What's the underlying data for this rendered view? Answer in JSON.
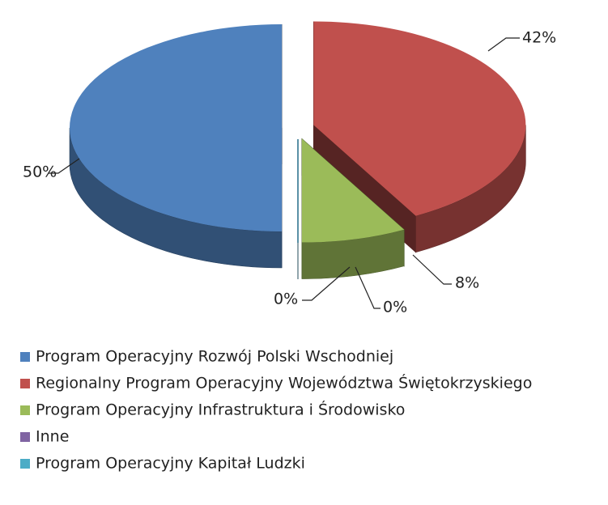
{
  "chart_data": {
    "type": "pie",
    "categories": [
      "Program Operacyjny Rozwój Polski Wschodniej",
      "Regionalny Program Operacyjny Województwa Świętokrzyskiego",
      "Program Operacyjny Infrastruktura i Środowisko",
      "Inne",
      "Program Operacyjny Kapitał Ludzki"
    ],
    "values": [
      50,
      42,
      8,
      0,
      0
    ],
    "value_labels": [
      "50%",
      "42%",
      "8%",
      "0%",
      "0%"
    ],
    "colors": [
      "#4f81bd",
      "#c0504d",
      "#9bbb59",
      "#8064a2",
      "#4bacc6"
    ],
    "legend": "bottom"
  }
}
